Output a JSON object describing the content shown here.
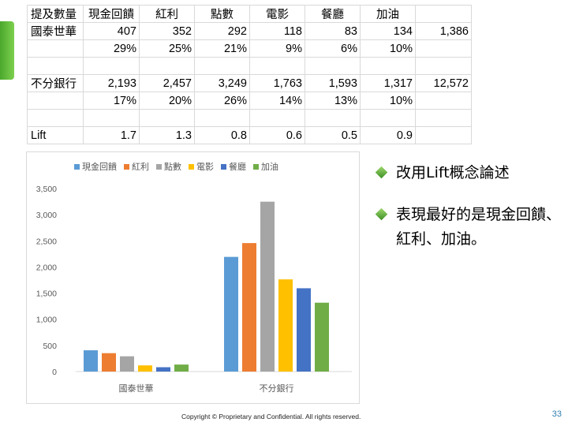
{
  "table": {
    "headers": [
      "提及數量",
      "現金回饋",
      "紅利",
      "點數",
      "電影",
      "餐廳",
      "加油",
      ""
    ],
    "rows": [
      [
        "國泰世華",
        "407",
        "352",
        "292",
        "118",
        "83",
        "134",
        "1,386"
      ],
      [
        "",
        "29%",
        "25%",
        "21%",
        "9%",
        "6%",
        "10%",
        ""
      ],
      [
        "",
        "",
        "",
        "",
        "",
        "",
        "",
        ""
      ],
      [
        "不分銀行",
        "2,193",
        "2,457",
        "3,249",
        "1,763",
        "1,593",
        "1,317",
        "12,572"
      ],
      [
        "",
        "17%",
        "20%",
        "26%",
        "14%",
        "13%",
        "10%",
        ""
      ],
      [
        "",
        "",
        "",
        "",
        "",
        "",
        "",
        ""
      ],
      [
        "Lift",
        "1.7",
        "1.3",
        "0.8",
        "0.6",
        "0.5",
        "0.9",
        ""
      ]
    ]
  },
  "chart_data": {
    "type": "bar",
    "categories": [
      "國泰世華",
      "不分銀行"
    ],
    "series": [
      {
        "name": "現金回饋",
        "values": [
          407,
          2193
        ],
        "color": "#5b9bd5"
      },
      {
        "name": "紅利",
        "values": [
          352,
          2457
        ],
        "color": "#ed7d31"
      },
      {
        "name": "點數",
        "values": [
          292,
          3249
        ],
        "color": "#a5a5a5"
      },
      {
        "name": "電影",
        "values": [
          118,
          1763
        ],
        "color": "#ffc000"
      },
      {
        "name": "餐廳",
        "values": [
          83,
          1593
        ],
        "color": "#4472c4"
      },
      {
        "name": "加油",
        "values": [
          134,
          1317
        ],
        "color": "#70ad47"
      }
    ],
    "ylim": [
      0,
      3500
    ],
    "yticks": [
      "3,500",
      "3,000",
      "2,500",
      "2,000",
      "1,500",
      "1,000",
      "500",
      "0"
    ],
    "ytick_values": [
      3500,
      3000,
      2500,
      2000,
      1500,
      1000,
      500,
      0
    ],
    "legend_position": "top",
    "grid": false,
    "title": "",
    "xlabel": "",
    "ylabel": ""
  },
  "bullets": [
    "改用Lift概念論述",
    "表現最好的是現金回饋、紅利、加油。"
  ],
  "footer": "Copyright © Proprietary and Confidential. All rights reserved.",
  "page_number": "33"
}
